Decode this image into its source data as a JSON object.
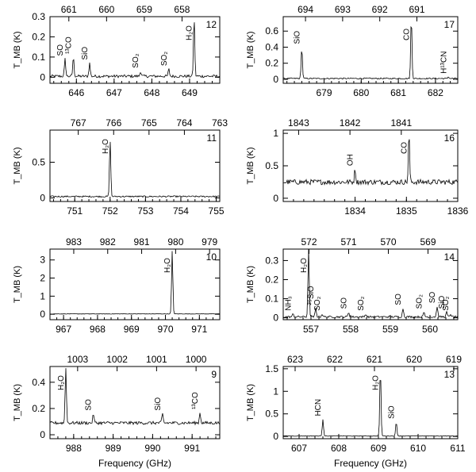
{
  "figure": {
    "xlabel": "Frequency (GHz)",
    "ylabel": "T_MB (K)"
  },
  "chart_data": [
    {
      "type": "line",
      "panel": "12",
      "xlim": [
        645.3,
        649.8
      ],
      "ylim": [
        -0.03,
        0.3
      ],
      "xticks": [
        646,
        647,
        648,
        649
      ],
      "yticks": [
        0,
        0.1,
        0.2,
        0.3
      ],
      "top_ticks": [
        {
          "v": 645.8,
          "label": "661"
        },
        {
          "v": 646.8,
          "label": "660"
        },
        {
          "v": 647.8,
          "label": "659"
        },
        {
          "v": 648.8,
          "label": "658"
        }
      ],
      "baseline": 0.005,
      "noise": 0.007,
      "lines": [
        {
          "x": 645.7,
          "y": 0.09,
          "label": "SO"
        },
        {
          "x": 645.92,
          "y": 0.1,
          "label": "¹³CO"
        },
        {
          "x": 646.35,
          "y": 0.07,
          "label": "SiO"
        },
        {
          "x": 647.7,
          "y": 0.03,
          "label": "SO₂"
        },
        {
          "x": 648.45,
          "y": 0.04,
          "label": "SO₂"
        },
        {
          "x": 649.12,
          "y": 0.3,
          "label": "H₂O"
        }
      ]
    },
    {
      "type": "line",
      "panel": "17",
      "xlim": [
        677.9,
        682.6
      ],
      "ylim": [
        -0.05,
        0.78
      ],
      "xticks": [
        679,
        680,
        681,
        682
      ],
      "yticks": [
        0,
        0.2,
        0.4,
        0.6
      ],
      "top_ticks": [
        {
          "v": 678.5,
          "label": "694"
        },
        {
          "v": 679.5,
          "label": "693"
        },
        {
          "v": 680.5,
          "label": "692"
        },
        {
          "v": 681.5,
          "label": "691"
        }
      ],
      "baseline": 0.01,
      "noise": 0.008,
      "lines": [
        {
          "x": 678.4,
          "y": 0.4,
          "label": "SiO"
        },
        {
          "x": 681.35,
          "y": 0.78,
          "label": "CO"
        },
        {
          "x": 682.35,
          "y": 0.03,
          "label": "H¹³CN"
        }
      ]
    },
    {
      "type": "line",
      "panel": "11",
      "xlim": [
        750.3,
        755.1
      ],
      "ylim": [
        -0.05,
        0.95
      ],
      "xticks": [
        751,
        752,
        753,
        754,
        755
      ],
      "yticks": [
        0,
        0.5
      ],
      "top_ticks": [
        {
          "v": 751.1,
          "label": "767"
        },
        {
          "v": 752.1,
          "label": "766"
        },
        {
          "v": 753.1,
          "label": "765"
        },
        {
          "v": 754.1,
          "label": "764"
        },
        {
          "v": 755.1,
          "label": "763"
        }
      ],
      "baseline": 0.02,
      "noise": 0.01,
      "lines": [
        {
          "x": 752.0,
          "y": 0.82,
          "label": "H₂O"
        }
      ]
    },
    {
      "type": "line",
      "panel": "16",
      "xlim": [
        1832.6,
        1836.0
      ],
      "ylim": [
        -0.05,
        1.05
      ],
      "xticks": [
        1834,
        1835,
        1836
      ],
      "yticks": [
        0,
        0.5,
        1
      ],
      "top_ticks": [
        {
          "v": 1832.9,
          "label": "1843"
        },
        {
          "v": 1833.9,
          "label": "1842"
        },
        {
          "v": 1834.9,
          "label": "1841"
        }
      ],
      "baseline": 0.25,
      "noise": 0.04,
      "lines": [
        {
          "x": 1834.0,
          "y": 0.45,
          "label": "OH"
        },
        {
          "x": 1835.05,
          "y": 1.0,
          "label": "CO"
        }
      ]
    },
    {
      "type": "line",
      "panel": "10",
      "xlim": [
        966.6,
        971.6
      ],
      "ylim": [
        -0.3,
        3.6
      ],
      "xticks": [
        967,
        968,
        969,
        970,
        971
      ],
      "yticks": [
        0,
        1,
        2,
        3
      ],
      "top_ticks": [
        {
          "v": 967.3,
          "label": "983"
        },
        {
          "v": 968.3,
          "label": "982"
        },
        {
          "v": 969.3,
          "label": "981"
        },
        {
          "v": 970.3,
          "label": "980"
        },
        {
          "v": 971.3,
          "label": "979"
        }
      ],
      "baseline": 0.02,
      "noise": 0.012,
      "lines": [
        {
          "x": 970.2,
          "y": 3.5,
          "label": "H₂O"
        }
      ]
    },
    {
      "type": "line",
      "panel": "14",
      "xlim": [
        556.3,
        560.7
      ],
      "ylim": [
        -0.01,
        0.36
      ],
      "xticks": [
        557,
        558,
        559,
        560
      ],
      "yticks": [
        0,
        0.1,
        0.2,
        0.3
      ],
      "top_ticks": [
        {
          "v": 556.95,
          "label": "572"
        },
        {
          "v": 557.95,
          "label": "571"
        },
        {
          "v": 558.95,
          "label": "570"
        },
        {
          "v": 559.95,
          "label": "569"
        }
      ],
      "baseline": 0.005,
      "noise": 0.005,
      "lines": [
        {
          "x": 556.55,
          "y": 0.02,
          "label": "NH₃"
        },
        {
          "x": 556.94,
          "y": 0.36,
          "label": "H₂O"
        },
        {
          "x": 557.12,
          "y": 0.05,
          "label": "²⁹SiO"
        },
        {
          "x": 557.28,
          "y": 0.02,
          "label": "SO₂"
        },
        {
          "x": 557.95,
          "y": 0.03,
          "label": "SO"
        },
        {
          "x": 558.38,
          "y": 0.02,
          "label": "SO₂"
        },
        {
          "x": 559.32,
          "y": 0.05,
          "label": "SO"
        },
        {
          "x": 559.85,
          "y": 0.03,
          "label": "SO₂"
        },
        {
          "x": 560.18,
          "y": 0.06,
          "label": "SO"
        },
        {
          "x": 560.42,
          "y": 0.03,
          "label": "SiO"
        },
        {
          "x": 560.52,
          "y": 0.02,
          "label": "SO₂"
        }
      ]
    },
    {
      "type": "line",
      "panel": "9",
      "xlim": [
        987.4,
        991.7
      ],
      "ylim": [
        -0.03,
        0.52
      ],
      "xticks": [
        988,
        989,
        990,
        991
      ],
      "yticks": [
        0,
        0.2,
        0.4
      ],
      "top_ticks": [
        {
          "v": 988.1,
          "label": "1003"
        },
        {
          "v": 989.1,
          "label": "1002"
        },
        {
          "v": 990.1,
          "label": "1001"
        },
        {
          "v": 991.1,
          "label": "1000"
        }
      ],
      "baseline": 0.09,
      "noise": 0.012,
      "lines": [
        {
          "x": 987.8,
          "y": 0.52,
          "label": "H₂O"
        },
        {
          "x": 988.5,
          "y": 0.16,
          "label": "SO"
        },
        {
          "x": 990.25,
          "y": 0.16,
          "label": "SiO"
        },
        {
          "x": 991.2,
          "y": 0.17,
          "label": "¹³CO"
        }
      ]
    },
    {
      "type": "line",
      "panel": "13",
      "xlim": [
        606.6,
        611.0
      ],
      "ylim": [
        -0.05,
        1.55
      ],
      "xticks": [
        607,
        608,
        609,
        610,
        611
      ],
      "yticks": [
        0,
        0.5,
        1,
        1.5
      ],
      "top_ticks": [
        {
          "v": 606.9,
          "label": "623"
        },
        {
          "v": 607.9,
          "label": "622"
        },
        {
          "v": 608.9,
          "label": "621"
        },
        {
          "v": 609.9,
          "label": "620"
        },
        {
          "v": 610.9,
          "label": "619"
        }
      ],
      "baseline": 0.01,
      "noise": 0.006,
      "lines": [
        {
          "x": 607.6,
          "y": 0.38,
          "label": "HCN"
        },
        {
          "x": 609.05,
          "y": 1.5,
          "label": "H₂O"
        },
        {
          "x": 609.45,
          "y": 0.32,
          "label": "SiO"
        }
      ]
    }
  ]
}
